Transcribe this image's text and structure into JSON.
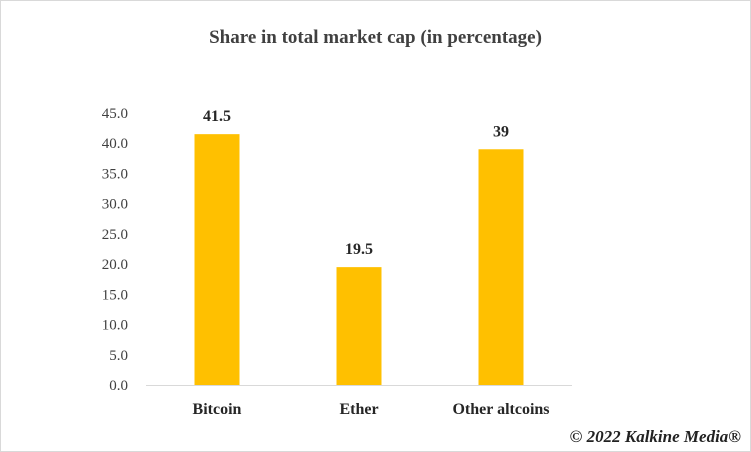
{
  "chart_data": {
    "type": "bar",
    "title": "Share in  total market cap (in percentage)",
    "categories": [
      "Bitcoin",
      "Ether",
      "Other altcoins"
    ],
    "values": [
      41.5,
      19.5,
      39
    ],
    "data_labels": [
      "41.5",
      "19.5",
      "39"
    ],
    "ylim": [
      0,
      45
    ],
    "yticks": [
      "0.0",
      "5.0",
      "10.0",
      "15.0",
      "20.0",
      "25.0",
      "30.0",
      "35.0",
      "40.0",
      "45.0"
    ],
    "ytick_values": [
      0,
      5,
      10,
      15,
      20,
      25,
      30,
      35,
      40,
      45
    ],
    "xlabel": "",
    "ylabel": "",
    "grid": false,
    "legend": "none",
    "bar_color": "#ffc000"
  },
  "credit": "© 2022 Kalkine Media®"
}
